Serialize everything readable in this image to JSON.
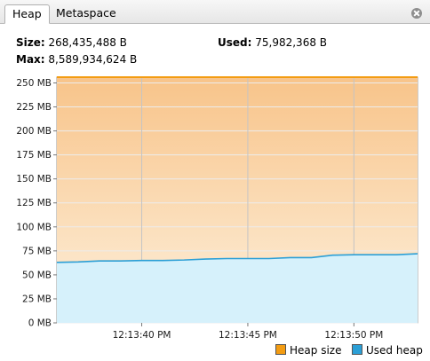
{
  "tabs": [
    {
      "label": "Heap",
      "active": true
    },
    {
      "label": "Metaspace",
      "active": false
    }
  ],
  "stats": {
    "size_label": "Size:",
    "size_value": "268,435,488 B",
    "used_label": "Used:",
    "used_value": "75,982,368 B",
    "max_label": "Max:",
    "max_value": "8,589,934,624 B"
  },
  "legend": {
    "heap_size": "Heap size",
    "used_heap": "Used heap"
  },
  "colors": {
    "heap_size_line": "#f39c12",
    "heap_size_fill_top": "#f8c48a",
    "heap_size_fill_bottom": "#fdf0dc",
    "used_heap_line": "#2b9fd6",
    "used_heap_fill": "#d6f1fb"
  },
  "chart_data": {
    "type": "area",
    "title": "",
    "xlabel": "",
    "ylabel": "",
    "ylim": [
      0,
      256
    ],
    "y_ticks": [
      0,
      25,
      50,
      75,
      100,
      125,
      150,
      175,
      200,
      225,
      250
    ],
    "y_tick_labels": [
      "0 MB",
      "25 MB",
      "50 MB",
      "75 MB",
      "100 MB",
      "125 MB",
      "150 MB",
      "175 MB",
      "200 MB",
      "225 MB",
      "250 MB"
    ],
    "xlim": [
      "12:13:36 PM",
      "12:13:53 PM"
    ],
    "x_ticks": [
      "12:13:40 PM",
      "12:13:45 PM",
      "12:13:50 PM"
    ],
    "grid": true,
    "legend_position": "bottom-right",
    "series": [
      {
        "name": "Heap size",
        "x": [
          "12:13:36 PM",
          "12:13:53 PM"
        ],
        "values": [
          256,
          256
        ]
      },
      {
        "name": "Used heap",
        "x": [
          "12:13:36 PM",
          "12:13:37 PM",
          "12:13:38 PM",
          "12:13:39 PM",
          "12:13:40 PM",
          "12:13:41 PM",
          "12:13:42 PM",
          "12:13:43 PM",
          "12:13:44 PM",
          "12:13:45 PM",
          "12:13:46 PM",
          "12:13:47 PM",
          "12:13:48 PM",
          "12:13:49 PM",
          "12:13:50 PM",
          "12:13:51 PM",
          "12:13:52 PM",
          "12:13:53 PM"
        ],
        "values": [
          63,
          63.5,
          64.5,
          64.5,
          65,
          65,
          65.5,
          66.5,
          67,
          67,
          67,
          68,
          68,
          70.5,
          71,
          71,
          71,
          72
        ]
      }
    ]
  }
}
